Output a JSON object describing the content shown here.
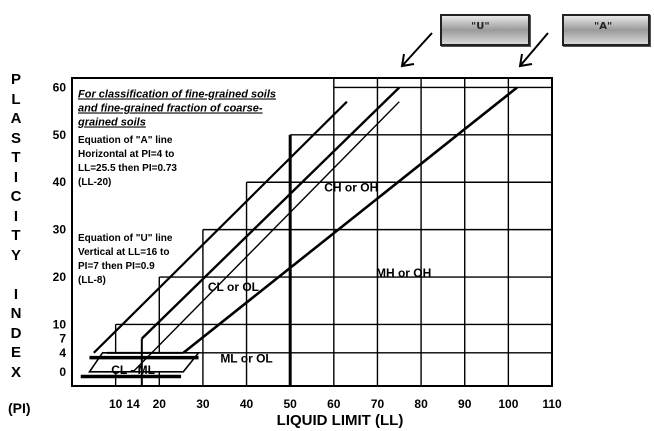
{
  "chart_data": {
    "type": "line",
    "ylabel_letters": [
      "P",
      "L",
      "A",
      "S",
      "T",
      "I",
      "C",
      "I",
      "T",
      "Y",
      "",
      "I",
      "N",
      "D",
      "E",
      "X"
    ],
    "ylabel_unit": "(PI)",
    "xlabel": "LIQUID LIMIT (LL)",
    "x_ticks": [
      "10",
      "14",
      "20",
      "30",
      "40",
      "50",
      "60",
      "70",
      "80",
      "90",
      "100",
      "110"
    ],
    "x_tick_values": [
      10,
      14,
      20,
      30,
      40,
      50,
      60,
      70,
      80,
      90,
      100,
      110
    ],
    "y_ticks": [
      "0",
      "4",
      "7",
      "10",
      "20",
      "30",
      "40",
      "50",
      "60"
    ],
    "y_tick_values": [
      0,
      4,
      7,
      10,
      20,
      30,
      40,
      50,
      60
    ],
    "xlim": [
      0,
      110
    ],
    "ylim": [
      -3,
      62
    ],
    "grid": true,
    "note_lines": [
      "For classification of fine-grained soils",
      "and fine-grained fraction of coarse-",
      "grained soils"
    ],
    "a_line_text": [
      "Equation of \"A\" line",
      "Horizontal at PI=4 to",
      "LL=25.5 then PI=0.73",
      "(LL-20)"
    ],
    "u_line_text": [
      "Equation of \"U\" line",
      "Vertical at LL=16 to",
      "PI=7 then PI=0.9",
      "(LL-8)"
    ],
    "zones": [
      {
        "label": "CH or OH",
        "x": 64,
        "y": 38
      },
      {
        "label": "CL or OL",
        "x": 37,
        "y": 17
      },
      {
        "label": "MH or OH",
        "x": 76,
        "y": 20
      },
      {
        "label": "ML or OL",
        "x": 40,
        "y": 2
      },
      {
        "label": "CL - ML",
        "x": 14,
        "y": -0.5
      }
    ],
    "series": [
      {
        "name": "U",
        "points": [
          [
            16,
            7
          ],
          [
            75,
            60
          ]
        ]
      },
      {
        "name": "A",
        "points": [
          [
            25.5,
            4
          ],
          [
            102,
            60
          ]
        ]
      }
    ],
    "callouts": [
      {
        "label": "\"U\""
      },
      {
        "label": "\"A\""
      }
    ]
  }
}
